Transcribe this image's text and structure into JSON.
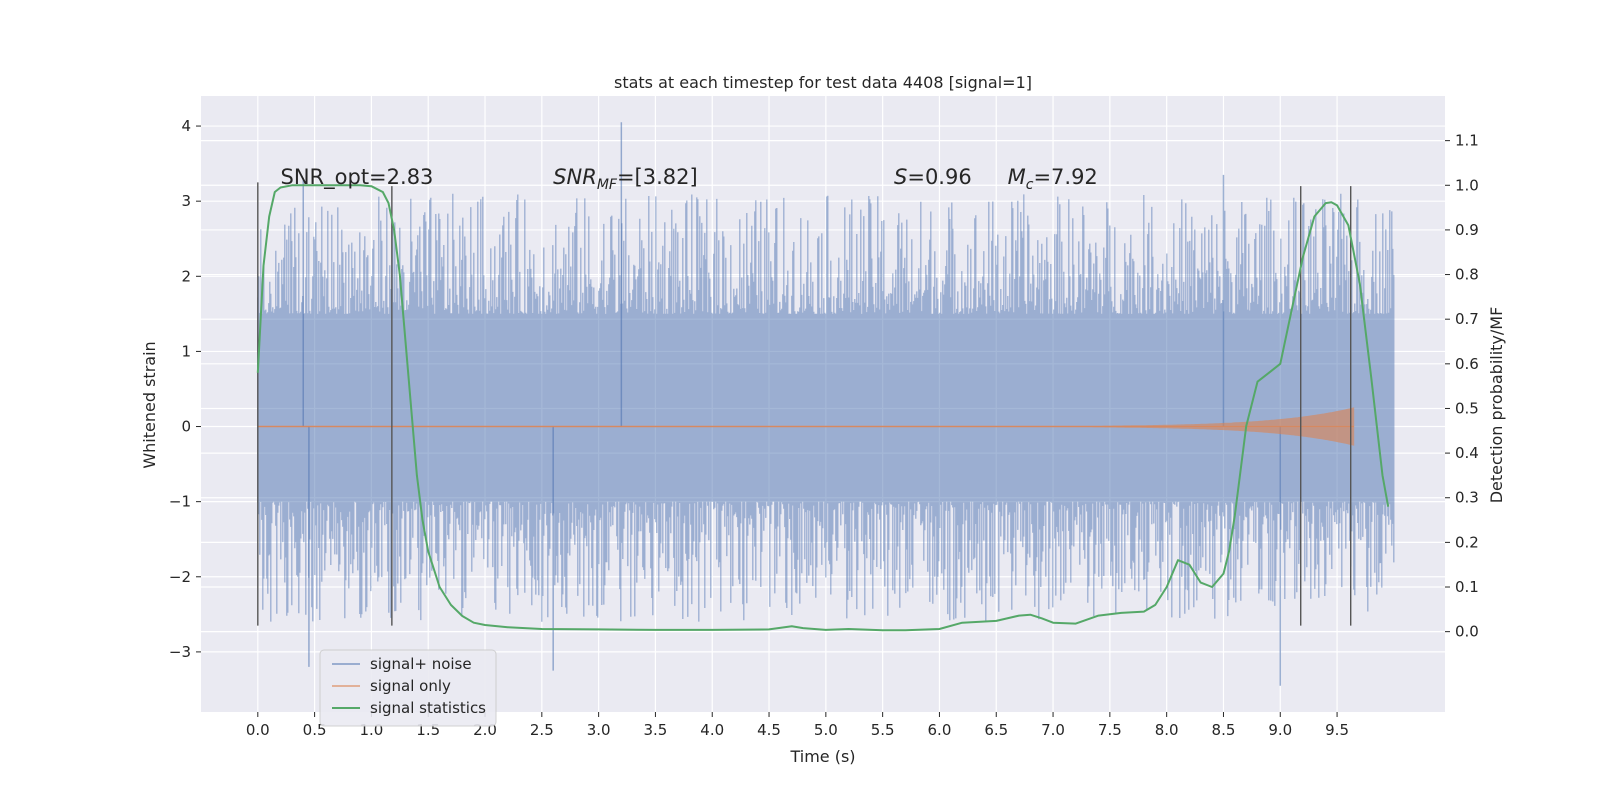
{
  "chart_data": {
    "type": "line",
    "title": "stats at each timestep for test data 4408 [signal=1]",
    "xlabel": "Time (s)",
    "ylabel": "Whitened strain",
    "y2label": "Detection probability/MF",
    "xlim": [
      -0.5,
      10.45
    ],
    "ylim": [
      -3.8,
      4.4
    ],
    "y2lim": [
      -0.18,
      1.2
    ],
    "x_ticks": [
      "0.0",
      "0.5",
      "1.0",
      "1.5",
      "2.0",
      "2.5",
      "3.0",
      "3.5",
      "4.0",
      "4.5",
      "5.0",
      "5.5",
      "6.0",
      "6.5",
      "7.0",
      "7.5",
      "8.0",
      "8.5",
      "9.0",
      "9.5"
    ],
    "y_ticks": [
      "4",
      "3",
      "2",
      "1",
      "0",
      "−1",
      "−2",
      "−3"
    ],
    "y2_ticks": [
      "1.1",
      "1.0",
      "0.9",
      "0.8",
      "0.7",
      "0.6",
      "0.5",
      "0.4",
      "0.3",
      "0.2",
      "0.1",
      "0.0"
    ],
    "grid": true,
    "legend_position": "bottom-left",
    "colors": {
      "background": "#eaeaf2",
      "noise": "#4c72b0",
      "signal_only": "#dd8452",
      "statistics": "#55a868",
      "marker": "#555555"
    },
    "annotations": [
      {
        "text": "SNR_opt=2.83",
        "x": 0.2
      },
      {
        "text": "SNR_MF=[3.82]",
        "x": 2.6,
        "math": "SNR",
        "sub": "MF",
        "rest": "=[3.82]"
      },
      {
        "text": "S=0.96",
        "x": 5.6,
        "math": "S",
        "rest": "=0.96"
      },
      {
        "text": "M_c=7.92",
        "x": 6.6,
        "math": "M",
        "sub": "c",
        "rest": "=7.92"
      }
    ],
    "series": [
      {
        "name": "signal+ noise",
        "axis": "left",
        "kind": "noise-band",
        "x_range": [
          0.0,
          10.0
        ],
        "y_range": [
          -3.45,
          4.05
        ],
        "dense_band": [
          -1.0,
          1.5
        ],
        "notable_points": [
          [
            3.2,
            4.05
          ],
          [
            8.5,
            3.35
          ],
          [
            0.4,
            3.3
          ],
          [
            9.0,
            -3.45
          ],
          [
            2.6,
            -3.25
          ],
          [
            0.45,
            -3.2
          ]
        ]
      },
      {
        "name": "signal only",
        "axis": "left",
        "kind": "chirp",
        "x_range": [
          0.0,
          9.65
        ],
        "max_amplitude": 0.25
      },
      {
        "name": "signal statistics",
        "axis": "right",
        "x": [
          0.0,
          0.05,
          0.1,
          0.15,
          0.2,
          0.3,
          0.5,
          0.7,
          0.9,
          1.0,
          1.1,
          1.15,
          1.2,
          1.25,
          1.3,
          1.35,
          1.4,
          1.45,
          1.5,
          1.6,
          1.7,
          1.8,
          1.9,
          2.0,
          2.2,
          2.5,
          3.0,
          3.5,
          4.0,
          4.5,
          4.7,
          4.8,
          5.0,
          5.2,
          5.5,
          5.7,
          6.0,
          6.2,
          6.5,
          6.7,
          6.8,
          6.9,
          7.0,
          7.2,
          7.4,
          7.6,
          7.8,
          7.9,
          8.0,
          8.1,
          8.2,
          8.3,
          8.4,
          8.5,
          8.55,
          8.6,
          8.65,
          8.7,
          8.8,
          8.9,
          9.0,
          9.1,
          9.2,
          9.3,
          9.4,
          9.45,
          9.5,
          9.6,
          9.7,
          9.8,
          9.9,
          9.95
        ],
        "y": [
          0.58,
          0.82,
          0.93,
          0.985,
          0.995,
          1.0,
          1.0,
          1.0,
          1.0,
          0.998,
          0.985,
          0.96,
          0.9,
          0.8,
          0.65,
          0.5,
          0.35,
          0.25,
          0.18,
          0.1,
          0.06,
          0.035,
          0.02,
          0.015,
          0.01,
          0.006,
          0.005,
          0.004,
          0.004,
          0.005,
          0.012,
          0.008,
          0.004,
          0.006,
          0.003,
          0.003,
          0.006,
          0.02,
          0.024,
          0.036,
          0.038,
          0.03,
          0.02,
          0.018,
          0.036,
          0.042,
          0.045,
          0.06,
          0.1,
          0.16,
          0.15,
          0.11,
          0.1,
          0.13,
          0.18,
          0.26,
          0.36,
          0.46,
          0.56,
          0.58,
          0.6,
          0.72,
          0.84,
          0.93,
          0.96,
          0.962,
          0.955,
          0.91,
          0.78,
          0.57,
          0.35,
          0.28
        ]
      }
    ],
    "vertical_markers": [
      {
        "x": 0.0,
        "ymin": -2.65,
        "ymax": 3.25
      },
      {
        "x": 1.18,
        "ymin": -2.65,
        "ymax": 3.2
      },
      {
        "x": 9.18,
        "ymin": -2.65,
        "ymax": 3.2
      },
      {
        "x": 9.62,
        "ymin": -2.65,
        "ymax": 3.2
      }
    ]
  }
}
